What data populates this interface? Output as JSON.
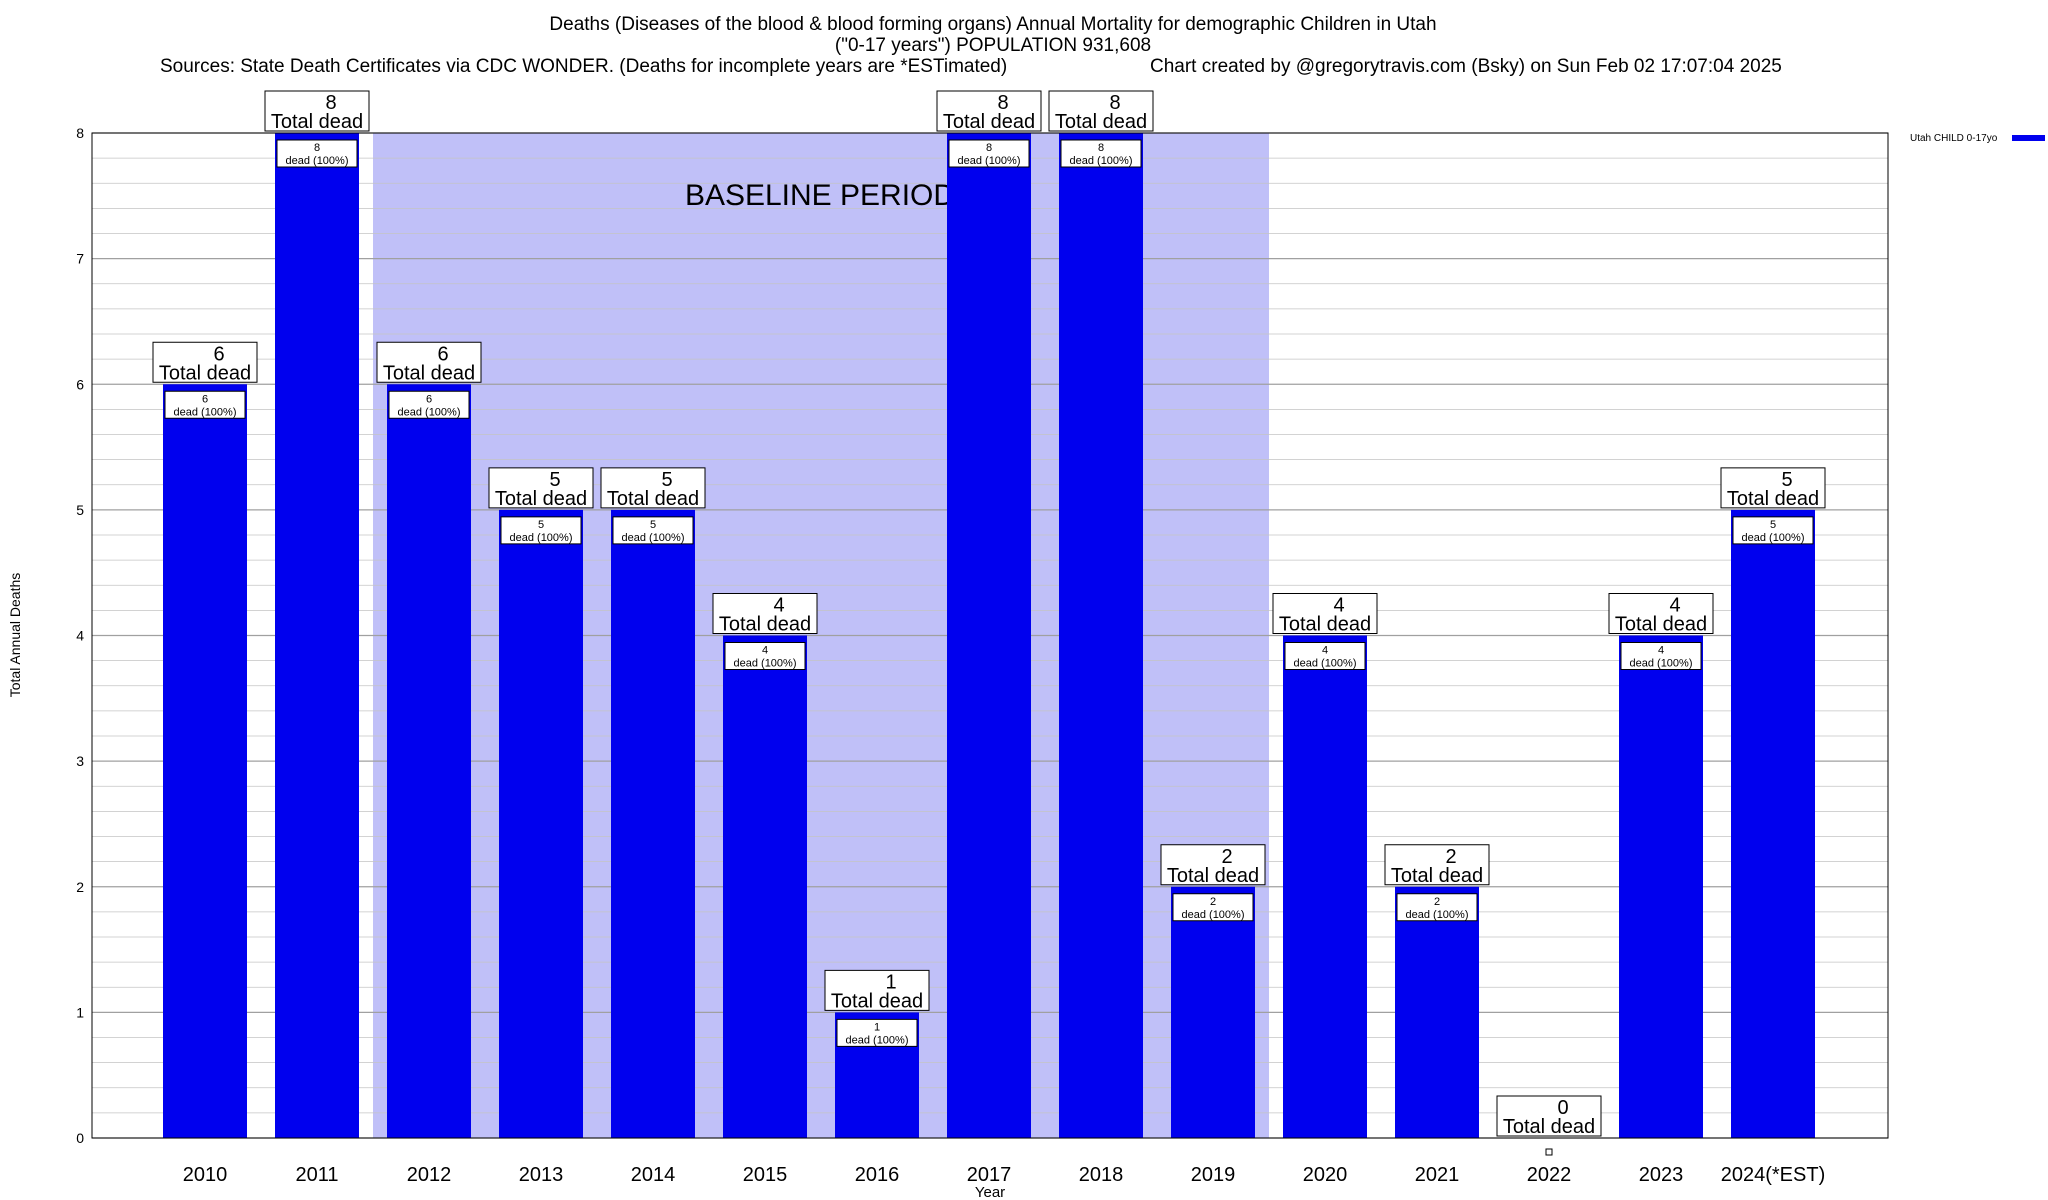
{
  "chart_data": {
    "type": "bar",
    "title": "Deaths (Diseases of the blood & blood forming organs) Annual Mortality for demographic Children in Utah",
    "subtitle": "(\"0-17 years\") POPULATION 931,608",
    "sources": "Sources: State Death Certificates via CDC WONDER. (Deaths for incomplete years are *ESTimated)",
    "credit": "Chart created by @gregorytravis.com (Bsky) on Sun Feb 02 17:07:04 2025",
    "xlabel": "Year",
    "ylabel": "Total Annual Deaths",
    "ylim": [
      0,
      8
    ],
    "yticks": [
      "0",
      "1",
      "2",
      "3",
      "4",
      "5",
      "6",
      "7",
      "8"
    ],
    "grid": true,
    "legend_position": "top-right",
    "categories": [
      "2010",
      "2011",
      "2012",
      "2013",
      "2014",
      "2015",
      "2016",
      "2017",
      "2018",
      "2019",
      "2020",
      "2021",
      "2022",
      "2023",
      "2024(*EST)"
    ],
    "series": [
      {
        "name": "Utah CHILD 0-17yo",
        "color": "#0000ee",
        "values": [
          6,
          8,
          6,
          5,
          5,
          4,
          1,
          8,
          8,
          2,
          4,
          2,
          0,
          4,
          5
        ]
      }
    ],
    "total_label": "Total dead",
    "inner_label_suffix": "dead (100%)",
    "baseline": {
      "label": "BASELINE PERIOD",
      "start_category": "2012",
      "end_category": "2019",
      "color": "#c0c0f8"
    }
  }
}
